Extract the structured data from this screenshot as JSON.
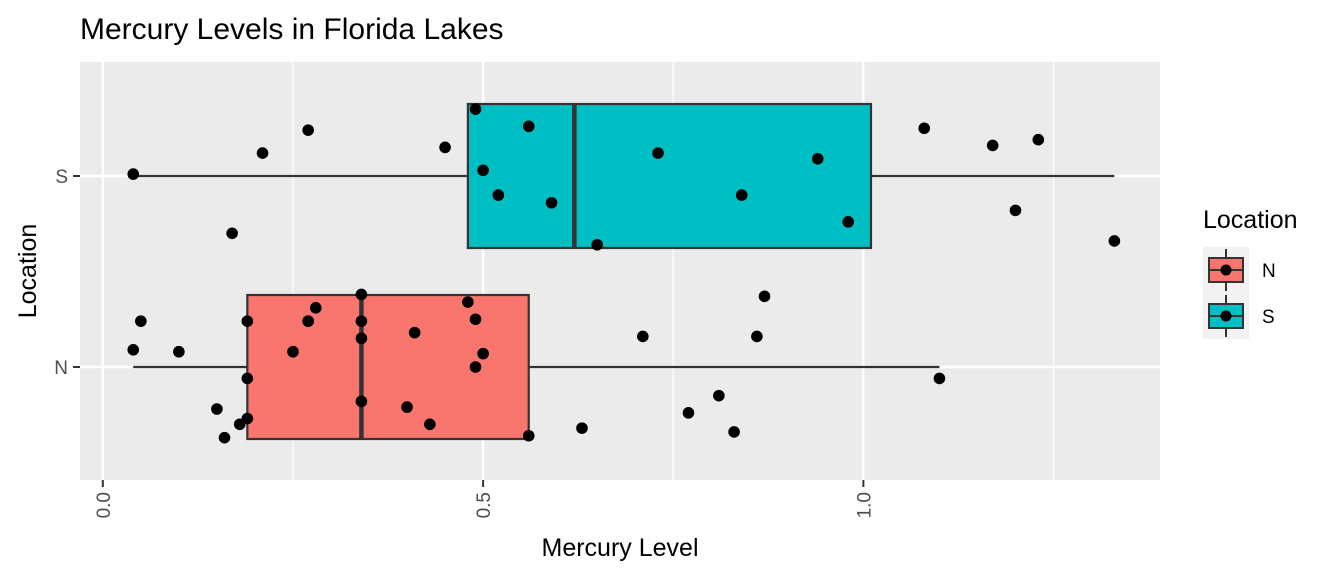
{
  "chart_data": {
    "type": "boxplot",
    "title": "Mercury Levels in Florida Lakes",
    "xlabel": "Mercury Level",
    "ylabel": "Location",
    "xlim": [
      -0.03,
      1.39
    ],
    "x_ticks": [
      {
        "value": 0.0,
        "label": "0.0"
      },
      {
        "value": 0.5,
        "label": "0.5"
      },
      {
        "value": 1.0,
        "label": "1.0"
      }
    ],
    "categories": [
      "N",
      "S"
    ],
    "grid": true,
    "legend": {
      "title": "Location",
      "position": "right",
      "items": [
        {
          "label": "N",
          "color": "#F8766D"
        },
        {
          "label": "S",
          "color": "#00BFC4"
        }
      ]
    },
    "boxes": [
      {
        "category": "N",
        "color": "#F8766D",
        "whisker_low": 0.04,
        "q1": 0.19,
        "median": 0.34,
        "q3": 0.56,
        "whisker_high": 1.1
      },
      {
        "category": "S",
        "color": "#00BFC4",
        "whisker_low": 0.04,
        "q1": 0.48,
        "median": 0.62,
        "q3": 1.01,
        "whisker_high": 1.33
      }
    ],
    "points": [
      {
        "category": "S",
        "x": 0.04,
        "jitter": 0.01
      },
      {
        "category": "S",
        "x": 0.21,
        "jitter": 0.12
      },
      {
        "category": "S",
        "x": 0.27,
        "jitter": 0.24
      },
      {
        "category": "S",
        "x": 0.17,
        "jitter": -0.3
      },
      {
        "category": "S",
        "x": 0.45,
        "jitter": 0.15
      },
      {
        "category": "S",
        "x": 0.49,
        "jitter": 0.35
      },
      {
        "category": "S",
        "x": 0.5,
        "jitter": 0.03
      },
      {
        "category": "S",
        "x": 0.52,
        "jitter": -0.1
      },
      {
        "category": "S",
        "x": 0.56,
        "jitter": 0.26
      },
      {
        "category": "S",
        "x": 0.59,
        "jitter": -0.14
      },
      {
        "category": "S",
        "x": 0.65,
        "jitter": -0.36
      },
      {
        "category": "S",
        "x": 0.73,
        "jitter": 0.12
      },
      {
        "category": "S",
        "x": 0.84,
        "jitter": -0.1
      },
      {
        "category": "S",
        "x": 0.94,
        "jitter": 0.09
      },
      {
        "category": "S",
        "x": 0.98,
        "jitter": -0.24
      },
      {
        "category": "S",
        "x": 1.08,
        "jitter": 0.25
      },
      {
        "category": "S",
        "x": 1.17,
        "jitter": 0.16
      },
      {
        "category": "S",
        "x": 1.2,
        "jitter": -0.18
      },
      {
        "category": "S",
        "x": 1.23,
        "jitter": 0.19
      },
      {
        "category": "S",
        "x": 1.33,
        "jitter": -0.34
      },
      {
        "category": "N",
        "x": 0.04,
        "jitter": 0.09
      },
      {
        "category": "N",
        "x": 0.05,
        "jitter": 0.24
      },
      {
        "category": "N",
        "x": 0.1,
        "jitter": 0.08
      },
      {
        "category": "N",
        "x": 0.15,
        "jitter": -0.22
      },
      {
        "category": "N",
        "x": 0.16,
        "jitter": -0.37
      },
      {
        "category": "N",
        "x": 0.18,
        "jitter": -0.3
      },
      {
        "category": "N",
        "x": 0.19,
        "jitter": -0.06
      },
      {
        "category": "N",
        "x": 0.19,
        "jitter": 0.24
      },
      {
        "category": "N",
        "x": 0.19,
        "jitter": -0.27
      },
      {
        "category": "N",
        "x": 0.25,
        "jitter": 0.08
      },
      {
        "category": "N",
        "x": 0.27,
        "jitter": 0.24
      },
      {
        "category": "N",
        "x": 0.27,
        "jitter": 0.24
      },
      {
        "category": "N",
        "x": 0.28,
        "jitter": 0.31
      },
      {
        "category": "N",
        "x": 0.34,
        "jitter": 0.38
      },
      {
        "category": "N",
        "x": 0.34,
        "jitter": 0.24
      },
      {
        "category": "N",
        "x": 0.34,
        "jitter": 0.15
      },
      {
        "category": "N",
        "x": 0.34,
        "jitter": -0.18
      },
      {
        "category": "N",
        "x": 0.4,
        "jitter": -0.21
      },
      {
        "category": "N",
        "x": 0.41,
        "jitter": 0.18
      },
      {
        "category": "N",
        "x": 0.43,
        "jitter": -0.3
      },
      {
        "category": "N",
        "x": 0.48,
        "jitter": 0.34
      },
      {
        "category": "N",
        "x": 0.49,
        "jitter": 0.25
      },
      {
        "category": "N",
        "x": 0.49,
        "jitter": 0.0
      },
      {
        "category": "N",
        "x": 0.5,
        "jitter": 0.07
      },
      {
        "category": "N",
        "x": 0.56,
        "jitter": -0.36
      },
      {
        "category": "N",
        "x": 0.63,
        "jitter": -0.32
      },
      {
        "category": "N",
        "x": 0.71,
        "jitter": 0.16
      },
      {
        "category": "N",
        "x": 0.77,
        "jitter": -0.24
      },
      {
        "category": "N",
        "x": 0.81,
        "jitter": -0.15
      },
      {
        "category": "N",
        "x": 0.83,
        "jitter": -0.34
      },
      {
        "category": "N",
        "x": 0.86,
        "jitter": 0.16
      },
      {
        "category": "N",
        "x": 0.87,
        "jitter": 0.37
      },
      {
        "category": "N",
        "x": 1.1,
        "jitter": -0.06
      }
    ]
  }
}
